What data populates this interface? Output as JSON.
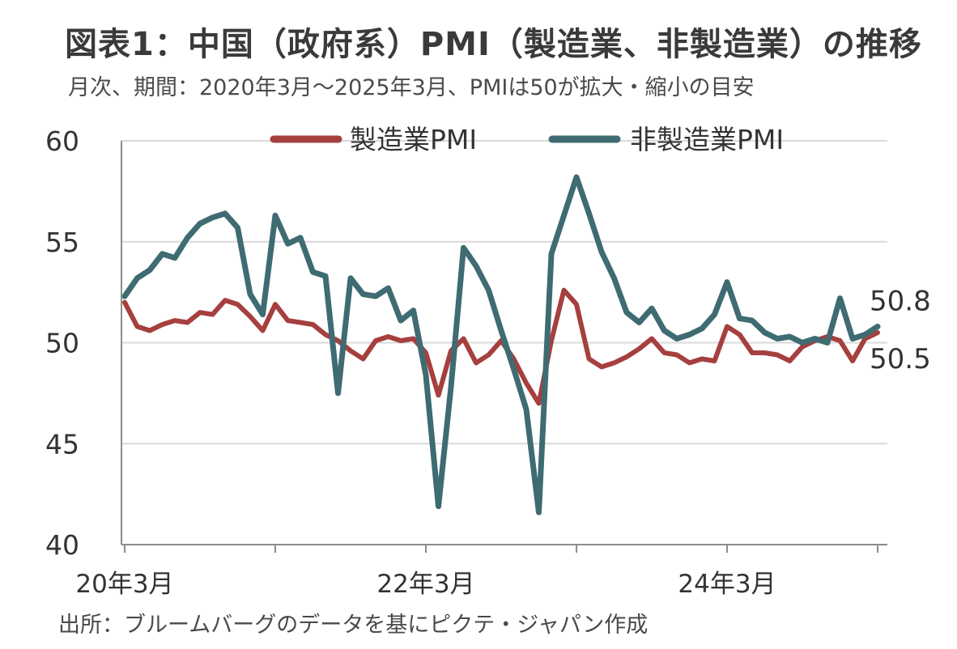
{
  "title": "図表1：中国（政府系）PMI（製造業、非製造業）の推移",
  "subtitle": "月次、期間：2020年3月～2025年3月、PMIは50が拡大・縮小の目安",
  "source": "出所：ブルームバーグのデータを基にピクテ・ジャパン作成",
  "chart_data": {
    "type": "line",
    "x": [
      "2020-03",
      "2020-04",
      "2020-05",
      "2020-06",
      "2020-07",
      "2020-08",
      "2020-09",
      "2020-10",
      "2020-11",
      "2020-12",
      "2021-01",
      "2021-02",
      "2021-03",
      "2021-04",
      "2021-05",
      "2021-06",
      "2021-07",
      "2021-08",
      "2021-09",
      "2021-10",
      "2021-11",
      "2021-12",
      "2022-01",
      "2022-02",
      "2022-03",
      "2022-04",
      "2022-05",
      "2022-06",
      "2022-07",
      "2022-08",
      "2022-09",
      "2022-10",
      "2022-11",
      "2022-12",
      "2023-01",
      "2023-02",
      "2023-03",
      "2023-04",
      "2023-05",
      "2023-06",
      "2023-07",
      "2023-08",
      "2023-09",
      "2023-10",
      "2023-11",
      "2023-12",
      "2024-01",
      "2024-02",
      "2024-03",
      "2024-04",
      "2024-05",
      "2024-06",
      "2024-07",
      "2024-08",
      "2024-09",
      "2024-10",
      "2024-11",
      "2024-12",
      "2025-01",
      "2025-02",
      "2025-03"
    ],
    "x_tick_labels": [
      "20年3月",
      "22年3月",
      "24年3月"
    ],
    "x_tick_positions": [
      "2020-03",
      "2022-03",
      "2024-03"
    ],
    "y_ticks": [
      40,
      45,
      50,
      55,
      60
    ],
    "ylim": [
      40,
      60
    ],
    "grid": "horizontal",
    "legend": "top",
    "series": [
      {
        "name": "製造業PMI",
        "color": "#a5403f",
        "values": [
          52.0,
          50.8,
          50.6,
          50.9,
          51.1,
          51.0,
          51.5,
          51.4,
          52.1,
          51.9,
          51.3,
          50.6,
          51.9,
          51.1,
          51.0,
          50.9,
          50.4,
          50.1,
          49.6,
          49.2,
          50.1,
          50.3,
          50.1,
          50.2,
          49.5,
          47.4,
          49.6,
          50.2,
          49.0,
          49.4,
          50.1,
          49.2,
          48.0,
          47.0,
          50.1,
          52.6,
          51.9,
          49.2,
          48.8,
          49.0,
          49.3,
          49.7,
          50.2,
          49.5,
          49.4,
          49.0,
          49.2,
          49.1,
          50.8,
          50.4,
          49.5,
          49.5,
          49.4,
          49.1,
          49.8,
          50.1,
          50.3,
          50.1,
          49.1,
          50.2,
          50.5
        ]
      },
      {
        "name": "非製造業PMI",
        "color": "#3f6b72",
        "values": [
          52.3,
          53.2,
          53.6,
          54.4,
          54.2,
          55.2,
          55.9,
          56.2,
          56.4,
          55.7,
          52.4,
          51.4,
          56.3,
          54.9,
          55.2,
          53.5,
          53.3,
          47.5,
          53.2,
          52.4,
          52.3,
          52.7,
          51.1,
          51.6,
          48.4,
          41.9,
          47.8,
          54.7,
          53.8,
          52.6,
          50.6,
          48.7,
          46.7,
          41.6,
          54.4,
          56.3,
          58.2,
          56.4,
          54.5,
          53.2,
          51.5,
          51.0,
          51.7,
          50.6,
          50.2,
          50.4,
          50.7,
          51.4,
          53.0,
          51.2,
          51.1,
          50.5,
          50.2,
          50.3,
          50.0,
          50.2,
          50.0,
          52.2,
          50.2,
          50.4,
          50.8
        ]
      }
    ],
    "end_labels": [
      "50.8",
      "50.5"
    ]
  }
}
